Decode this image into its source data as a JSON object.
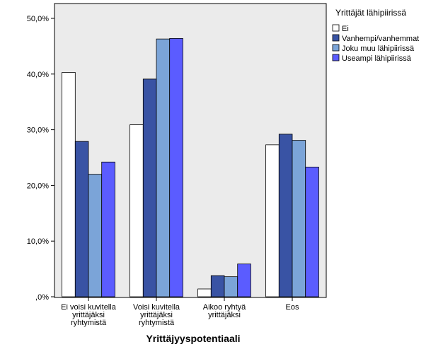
{
  "chart_data": {
    "type": "bar",
    "xlabel": "Yrittäjyyspotentiaali",
    "ylabel": "",
    "ylim": [
      0,
      50
    ],
    "yticks": [
      0,
      10,
      20,
      30,
      40,
      50
    ],
    "ytick_labels": [
      ",0%",
      "10,0%",
      "20,0%",
      "30,0%",
      "40,0%",
      "50,0%"
    ],
    "categories": [
      [
        "Ei voisi kuvitella",
        "yrittäjäksi",
        "ryhtymistä"
      ],
      [
        "Voisi kuvitella",
        "yrittäjäksi",
        "ryhtymistä"
      ],
      [
        "Aikoo ryhtyä",
        "yrittäjäksi"
      ],
      [
        "Eos"
      ]
    ],
    "legend": {
      "title": "Yrittäjät lähipiirissä",
      "placement": "right"
    },
    "series": [
      {
        "name": "Ei",
        "color": "#ffffff",
        "values": [
          40.3,
          30.9,
          1.4,
          27.3
        ]
      },
      {
        "name": "Vanhempi/vanhemmat",
        "color": "#3953a4",
        "values": [
          27.9,
          39.1,
          3.8,
          29.2
        ]
      },
      {
        "name": "Joku muu lähipiirissä",
        "color": "#7ba4d8",
        "values": [
          22.0,
          46.3,
          3.6,
          28.1
        ]
      },
      {
        "name": "Useampi lähipiirissä",
        "color": "#5b5cff",
        "values": [
          24.2,
          46.4,
          5.9,
          23.3
        ]
      }
    ],
    "plot_background": "#ebebeb",
    "grid": false
  }
}
